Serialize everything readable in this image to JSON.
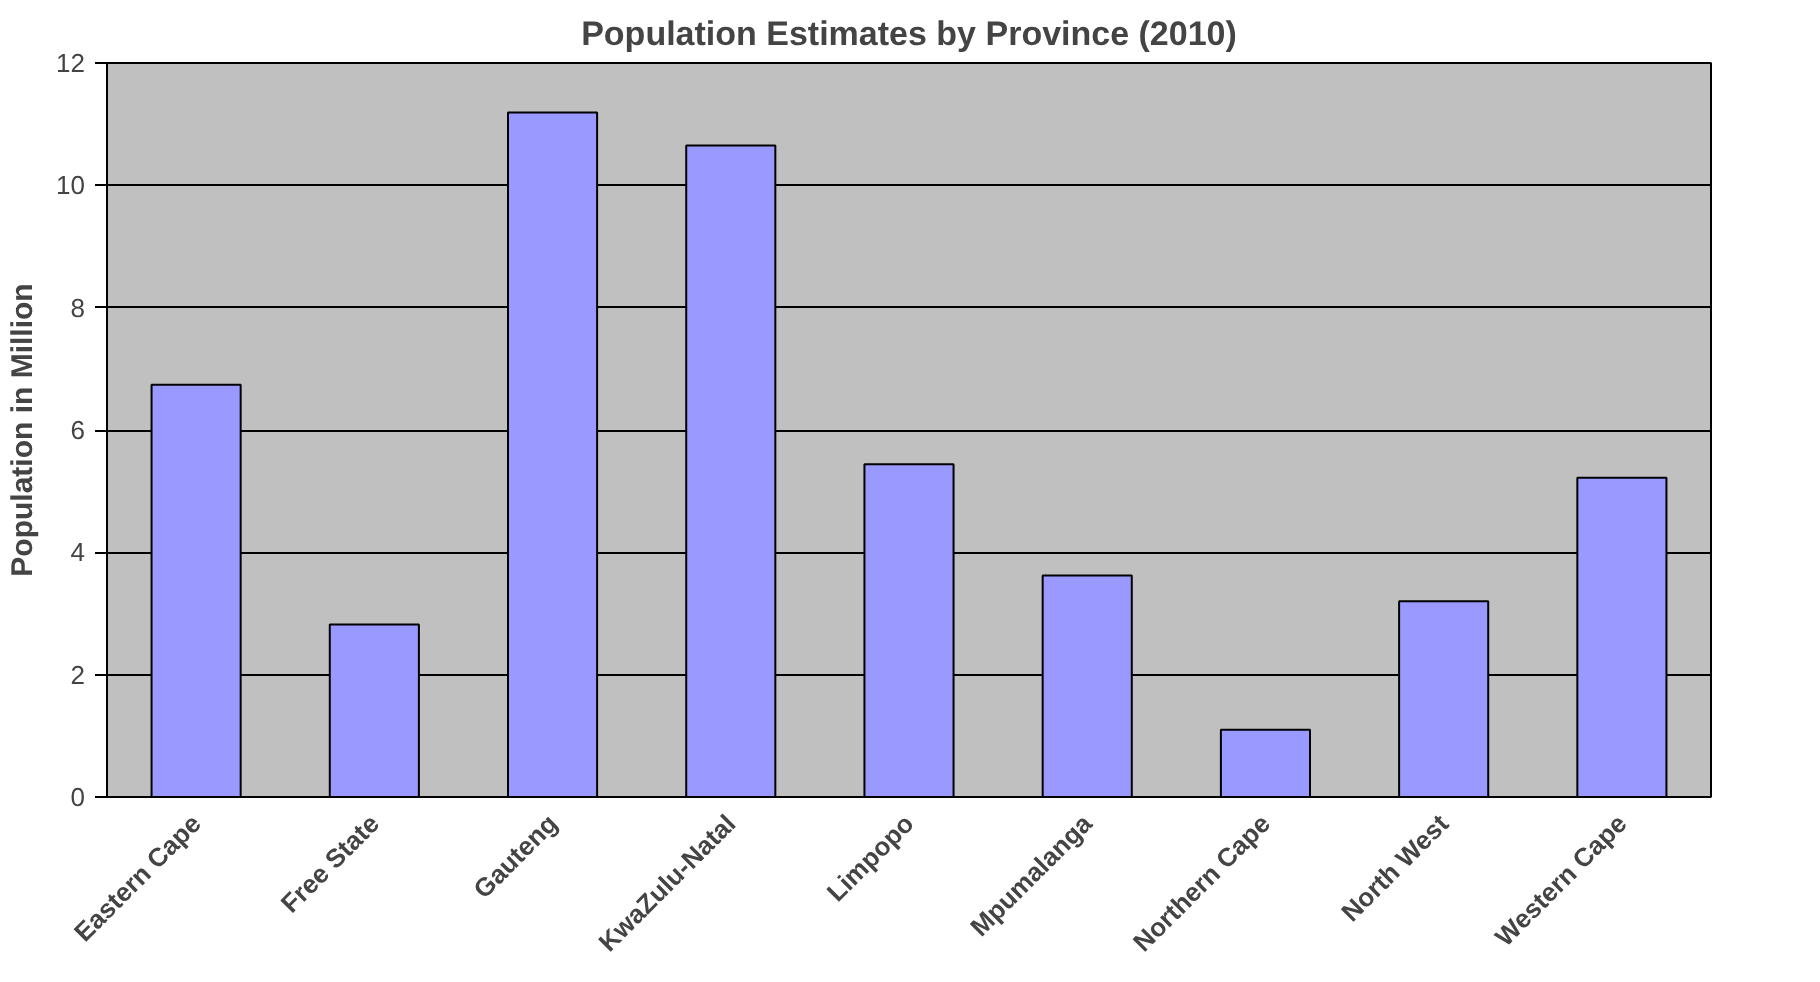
{
  "chart_data": {
    "type": "bar",
    "title": "Population Estimates by Province (2010)",
    "ylabel": "Population in Million",
    "categories": [
      "Eastern Cape",
      "Free State",
      "Gauteng",
      "KwaZulu-Natal",
      "Limpopo",
      "Mpumalanga",
      "Northern Cape",
      "North West",
      "Western Cape"
    ],
    "values": [
      6.74,
      2.82,
      11.19,
      10.65,
      5.44,
      3.62,
      1.1,
      3.2,
      5.22
    ],
    "color": "#9999ff",
    "ylim": [
      0,
      12
    ],
    "yticks": [
      0,
      2,
      4,
      6,
      8,
      10,
      12
    ],
    "grid": "y"
  }
}
